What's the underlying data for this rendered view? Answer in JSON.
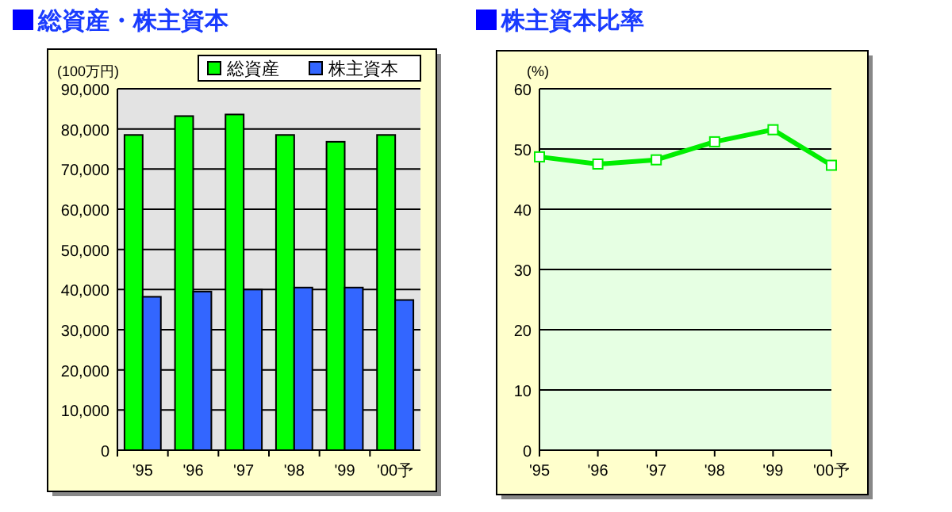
{
  "chart_data": [
    {
      "type": "bar",
      "title": "総資産・株主資本",
      "ylabel": "(100万円)",
      "categories": [
        "'95",
        "'96",
        "'97",
        "'98",
        "'99",
        "'00予"
      ],
      "series": [
        {
          "name": "総資産",
          "color": "#00ff00",
          "values": [
            78500,
            83200,
            83600,
            78500,
            76800,
            78500
          ]
        },
        {
          "name": "株主資本",
          "color": "#3366ff",
          "values": [
            38200,
            39500,
            40000,
            40500,
            40500,
            37400
          ]
        }
      ],
      "ylim": [
        0,
        90000
      ],
      "yticks": [
        0,
        {
          "value": 10000,
          "label": "10,000"
        },
        {
          "value": 20000,
          "label": "20,000"
        },
        {
          "value": 30000,
          "label": "30,000"
        },
        {
          "value": 40000,
          "label": "40,000"
        },
        {
          "value": 50000,
          "label": "50,000"
        },
        {
          "value": 60000,
          "label": "60,000"
        },
        {
          "value": 70000,
          "label": "70,000"
        },
        {
          "value": 80000,
          "label": "80,000"
        },
        {
          "value": 90000,
          "label": "90,000"
        }
      ],
      "grid": "y",
      "legend": "top right"
    },
    {
      "type": "line",
      "title": "株主資本比率",
      "ylabel": "(%)",
      "categories": [
        "'95",
        "'96",
        "'97",
        "'98",
        "'99",
        "'00予"
      ],
      "series": [
        {
          "color": "#00ee00",
          "values": [
            48.7,
            47.5,
            48.2,
            51.2,
            53.2,
            47.3
          ]
        }
      ],
      "ylim": [
        0,
        60
      ],
      "yticks": [
        0,
        10,
        20,
        30,
        40,
        50,
        60
      ],
      "grid": "y",
      "marker": "square"
    }
  ]
}
